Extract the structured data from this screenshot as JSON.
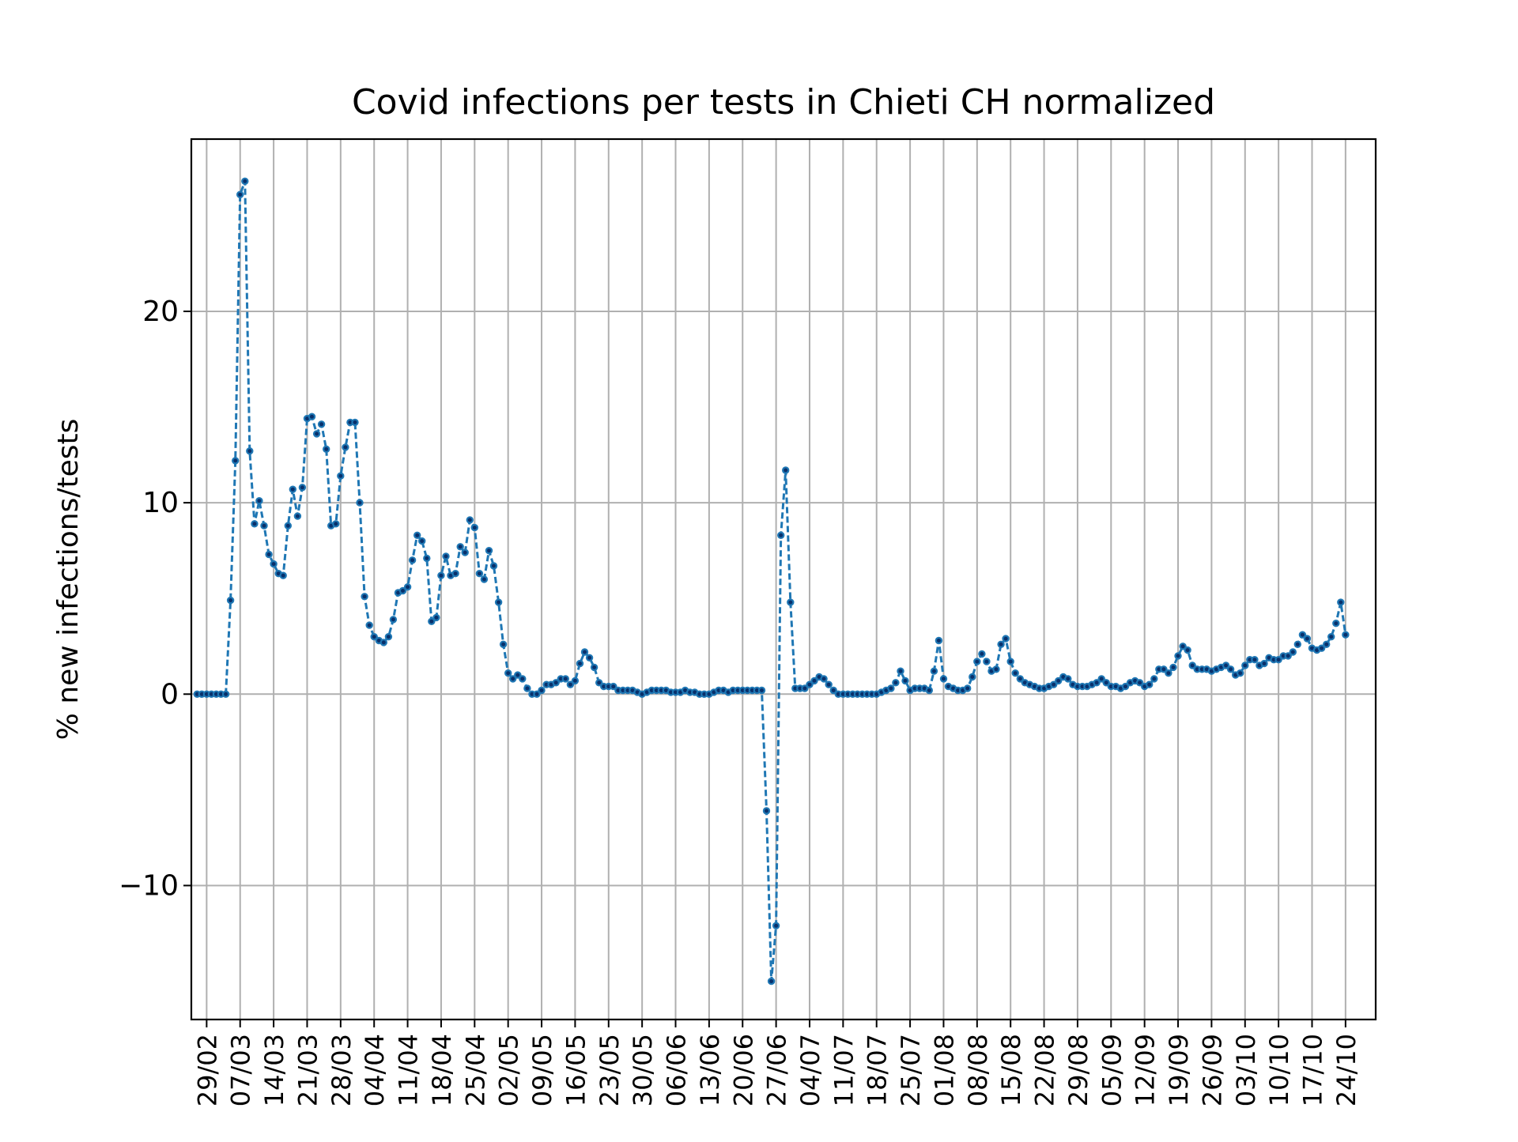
{
  "chart_data": {
    "type": "line",
    "title": "Covid infections per tests in Chieti CH normalized",
    "xlabel": "",
    "ylabel": "% new infections/tests",
    "x_tick_labels": [
      "29/02",
      "07/03",
      "14/03",
      "21/03",
      "28/03",
      "04/04",
      "11/04",
      "18/04",
      "25/04",
      "02/05",
      "09/05",
      "16/05",
      "23/05",
      "30/05",
      "06/06",
      "13/06",
      "20/06",
      "27/06",
      "04/07",
      "11/07",
      "18/07",
      "25/07",
      "01/08",
      "08/08",
      "15/08",
      "22/08",
      "29/08",
      "05/09",
      "12/09",
      "19/09",
      "26/09",
      "03/10",
      "10/10",
      "17/10",
      "24/10"
    ],
    "y_ticks": [
      -10,
      0,
      10,
      20
    ],
    "y_tick_labels": [
      "−10",
      "0",
      "10",
      "20"
    ],
    "ylim": [
      -17,
      29
    ],
    "x_start_date": "2020-02-27",
    "grid": true,
    "line_color": "#1f77b4",
    "marker_color": "#08306b",
    "series": [
      {
        "values": [
          0,
          0,
          0,
          0,
          0,
          0,
          0,
          4.9,
          12.2,
          26.1,
          26.8,
          12.7,
          8.9,
          10.1,
          8.8,
          7.3,
          6.8,
          6.3,
          6.2,
          8.8,
          10.7,
          9.3,
          10.8,
          14.4,
          14.5,
          13.6,
          14.1,
          12.8,
          8.8,
          8.9,
          11.4,
          12.9,
          14.2,
          14.2,
          10.0,
          5.1,
          3.6,
          3.0,
          2.8,
          2.7,
          3.0,
          3.9,
          5.3,
          5.4,
          5.6,
          7.0,
          8.3,
          8.0,
          7.1,
          3.8,
          4.0,
          6.2,
          7.2,
          6.2,
          6.3,
          7.7,
          7.4,
          9.1,
          8.7,
          6.3,
          6.0,
          7.5,
          6.7,
          4.8,
          2.6,
          1.1,
          0.8,
          1.0,
          0.8,
          0.3,
          0.0,
          0.0,
          0.2,
          0.5,
          0.5,
          0.6,
          0.8,
          0.8,
          0.5,
          0.7,
          1.6,
          2.2,
          1.9,
          1.4,
          0.6,
          0.4,
          0.4,
          0.4,
          0.2,
          0.2,
          0.2,
          0.2,
          0.1,
          0.0,
          0.1,
          0.2,
          0.2,
          0.2,
          0.2,
          0.1,
          0.1,
          0.1,
          0.2,
          0.1,
          0.1,
          0.0,
          0.0,
          0.0,
          0.1,
          0.2,
          0.2,
          0.1,
          0.2,
          0.2,
          0.2,
          0.2,
          0.2,
          0.2,
          0.2,
          -6.1,
          -15.0,
          -12.1,
          8.3,
          11.7,
          4.8,
          0.3,
          0.3,
          0.3,
          0.5,
          0.7,
          0.9,
          0.8,
          0.5,
          0.2,
          0.0,
          0.0,
          0.0,
          0.0,
          0.0,
          0.0,
          0.0,
          0.0,
          0.0,
          0.1,
          0.2,
          0.3,
          0.6,
          1.2,
          0.7,
          0.2,
          0.3,
          0.3,
          0.3,
          0.2,
          1.2,
          2.8,
          0.8,
          0.4,
          0.3,
          0.2,
          0.2,
          0.3,
          0.9,
          1.7,
          2.1,
          1.7,
          1.2,
          1.3,
          2.6,
          2.9,
          1.7,
          1.1,
          0.8,
          0.6,
          0.5,
          0.4,
          0.3,
          0.3,
          0.4,
          0.5,
          0.7,
          0.9,
          0.8,
          0.5,
          0.4,
          0.4,
          0.4,
          0.5,
          0.6,
          0.8,
          0.6,
          0.4,
          0.4,
          0.3,
          0.4,
          0.6,
          0.7,
          0.6,
          0.4,
          0.5,
          0.8,
          1.3,
          1.3,
          1.1,
          1.4,
          2.0,
          2.5,
          2.3,
          1.5,
          1.3,
          1.3,
          1.3,
          1.2,
          1.3,
          1.4,
          1.5,
          1.3,
          1.0,
          1.1,
          1.5,
          1.8,
          1.8,
          1.5,
          1.6,
          1.9,
          1.8,
          1.8,
          2.0,
          2.0,
          2.2,
          2.6,
          3.1,
          2.9,
          2.4,
          2.3,
          2.4,
          2.6,
          3.0,
          3.7,
          4.8,
          3.1
        ]
      }
    ]
  }
}
